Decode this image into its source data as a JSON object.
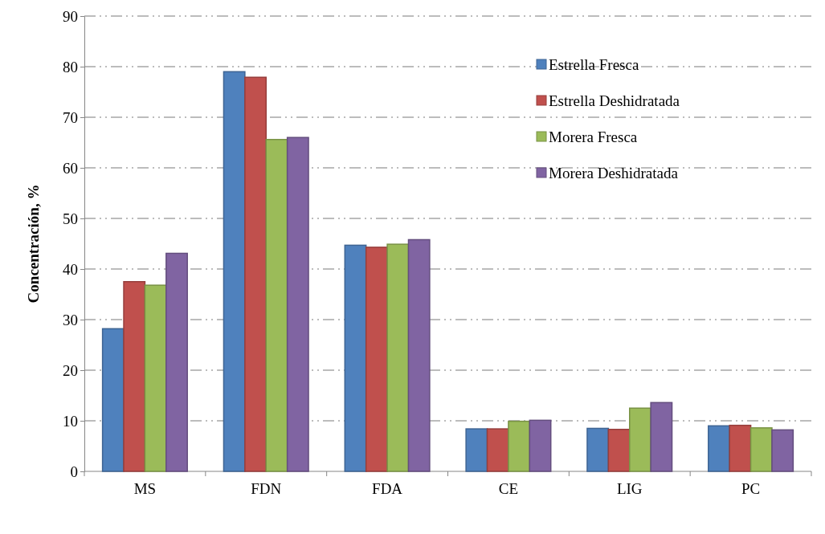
{
  "chart_data": {
    "type": "bar",
    "ylabel": "Concentración, %",
    "categories": [
      "MS",
      "FDN",
      "FDA",
      "CE",
      "LIG",
      "PC"
    ],
    "series": [
      {
        "name": "Estrella Fresca",
        "color": "#4f81bd",
        "values": [
          28.2,
          79.0,
          44.7,
          8.4,
          8.5,
          9.0
        ]
      },
      {
        "name": "Estrella Deshidratada",
        "color": "#c0504d",
        "values": [
          37.5,
          77.9,
          44.3,
          8.4,
          8.3,
          9.1
        ]
      },
      {
        "name": "Morera Fresca",
        "color": "#9bbb59",
        "values": [
          36.8,
          65.6,
          44.9,
          9.9,
          12.5,
          8.6
        ]
      },
      {
        "name": "Morera Deshidratada",
        "color": "#8064a2",
        "values": [
          43.1,
          66.0,
          45.8,
          10.1,
          13.6,
          8.2
        ]
      }
    ],
    "ylim": [
      0,
      90
    ],
    "yticks": [
      0,
      10,
      20,
      30,
      40,
      50,
      60,
      70,
      80,
      90
    ],
    "grid": "y",
    "legend": "top right"
  }
}
